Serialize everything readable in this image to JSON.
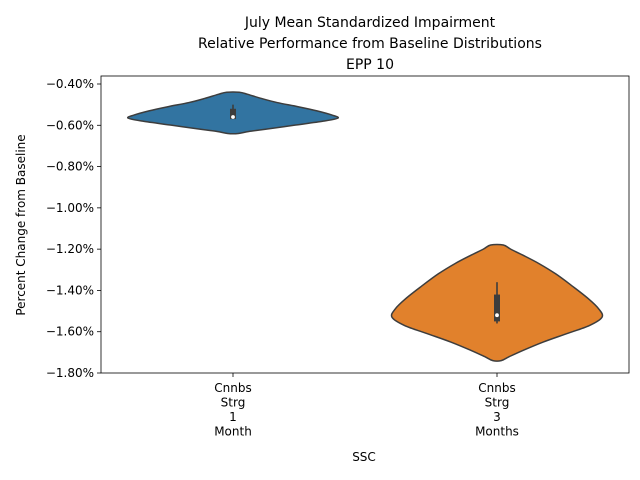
{
  "chart_data": {
    "type": "violin",
    "title_lines": [
      "July Mean Standardized Impairment",
      "Relative Performance from Baseline Distributions",
      "EPP 10"
    ],
    "xlabel": "SSC",
    "ylabel": "Percent Change from Baseline",
    "ylim": [
      -1.8,
      -0.4
    ],
    "yticks": [
      -0.4,
      -0.6,
      -0.8,
      -1.0,
      -1.2,
      -1.4,
      -1.6,
      -1.8
    ],
    "ytick_labels": [
      "−0.40%",
      "−0.60%",
      "−0.80%",
      "−1.00%",
      "−1.20%",
      "−1.40%",
      "−1.60%",
      "−1.80%"
    ],
    "grid": false,
    "categories": [
      {
        "label_lines": [
          "Cnnbs",
          "Strg",
          "1",
          "Month"
        ],
        "color": "#3274a1",
        "min": -0.64,
        "max": -0.44,
        "whisker_low": -0.57,
        "whisker_high": -0.5,
        "q1": -0.57,
        "q3": -0.52,
        "median": -0.56,
        "density": [
          [
            -0.44,
            0.06
          ],
          [
            -0.45,
            0.14
          ],
          [
            -0.47,
            0.27
          ],
          [
            -0.49,
            0.42
          ],
          [
            -0.51,
            0.62
          ],
          [
            -0.53,
            0.8
          ],
          [
            -0.55,
            0.94
          ],
          [
            -0.565,
            1.0
          ],
          [
            -0.58,
            0.86
          ],
          [
            -0.6,
            0.58
          ],
          [
            -0.62,
            0.3
          ],
          [
            -0.63,
            0.15
          ],
          [
            -0.64,
            0.05
          ]
        ]
      },
      {
        "label_lines": [
          "Cnnbs",
          "Strg",
          "3",
          "Months"
        ],
        "color": "#e1812c",
        "min": -1.74,
        "max": -1.18,
        "whisker_low": -1.56,
        "whisker_high": -1.36,
        "q1": -1.55,
        "q3": -1.42,
        "median": -1.52,
        "density": [
          [
            -1.18,
            0.06
          ],
          [
            -1.2,
            0.13
          ],
          [
            -1.23,
            0.25
          ],
          [
            -1.27,
            0.4
          ],
          [
            -1.32,
            0.56
          ],
          [
            -1.38,
            0.72
          ],
          [
            -1.44,
            0.87
          ],
          [
            -1.49,
            0.97
          ],
          [
            -1.53,
            1.0
          ],
          [
            -1.57,
            0.88
          ],
          [
            -1.61,
            0.66
          ],
          [
            -1.65,
            0.44
          ],
          [
            -1.69,
            0.25
          ],
          [
            -1.72,
            0.12
          ],
          [
            -1.74,
            0.04
          ]
        ]
      }
    ]
  }
}
